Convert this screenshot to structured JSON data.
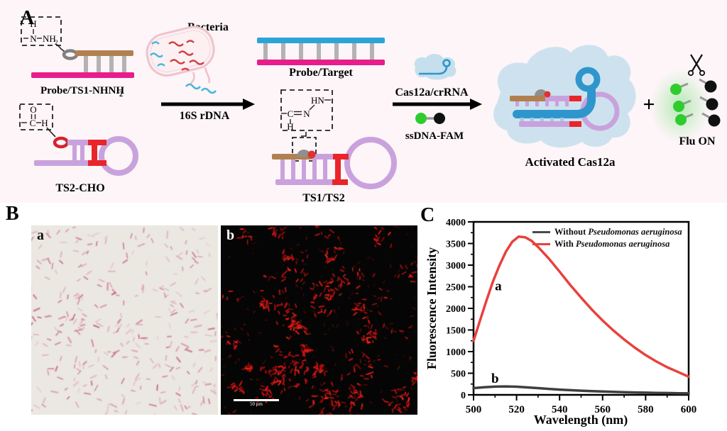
{
  "panel_a": {
    "label": "A",
    "probe_ts1": {
      "main": "Probe/TS1-NHNH",
      "sub": "2"
    },
    "bacteria_label": "Bacteria",
    "arrow1_label": "16S rDNA",
    "ts2_cho_label": "TS2-CHO",
    "probe_target_label": "Probe/Target",
    "ts1_ts2_label": "TS1/TS2",
    "cas12a_label": "Cas12a/crRNA",
    "ssdna_label": "ssDNA-FAM",
    "activated_label": "Activated Cas12a",
    "plus": "+",
    "flu_on_label": "Flu ON",
    "chem_hydrazide": {
      "h": "H",
      "n": "N",
      "nh": "NH",
      "sub": "2"
    },
    "chem_aldehyde": {
      "o": "O",
      "c": "C",
      "h": "H"
    },
    "chem_hydrazone": {
      "hn": "HN",
      "c": "C",
      "n": "N",
      "h": "H"
    }
  },
  "panel_b": {
    "label": "B",
    "image_a_label": "a",
    "image_b_label": "b",
    "scale_bar_text": "50 μm"
  },
  "panel_c": {
    "label": "C",
    "legend": [
      {
        "prefix": "Without ",
        "species": "Pseudomonas aeruginosa",
        "color": "#4a4a4a"
      },
      {
        "prefix": "With ",
        "species": "Pseudomonas aeruginosa",
        "color": "#e8413c"
      }
    ]
  },
  "chart_data": {
    "type": "line",
    "title": "",
    "xlabel": "Wavelength (nm)",
    "ylabel": "Fluorescence Intensity",
    "xlim": [
      500,
      600
    ],
    "ylim": [
      0,
      4000
    ],
    "xticks": [
      500,
      520,
      540,
      560,
      580,
      600
    ],
    "yticks": [
      0,
      500,
      1000,
      1500,
      2000,
      2500,
      3000,
      3500,
      4000
    ],
    "x_minor_step": 10,
    "y_minor_step": 250,
    "grid": false,
    "legend_position": "top-right-inside",
    "series": [
      {
        "name": "With Pseudomonas aeruginosa",
        "curve_label": "a",
        "label_x": 511.5,
        "label_y": 2420,
        "color": "#e8413c",
        "x": [
          500,
          503,
          506,
          509,
          512,
          515,
          518,
          521,
          524,
          527,
          530,
          535,
          540,
          545,
          550,
          555,
          560,
          565,
          570,
          575,
          580,
          585,
          590,
          595,
          600
        ],
        "y": [
          1250,
          1720,
          2180,
          2620,
          2990,
          3310,
          3540,
          3660,
          3645,
          3560,
          3420,
          3150,
          2850,
          2540,
          2250,
          1970,
          1720,
          1490,
          1280,
          1090,
          920,
          770,
          640,
          530,
          420
        ]
      },
      {
        "name": "Without Pseudomonas aeruginosa",
        "curve_label": "b",
        "label_x": 510,
        "label_y": 280,
        "color": "#3f3f3f",
        "x": [
          500,
          505,
          510,
          515,
          520,
          525,
          530,
          535,
          540,
          545,
          550,
          555,
          560,
          565,
          570,
          575,
          580,
          585,
          590,
          595,
          600
        ],
        "y": [
          155,
          175,
          190,
          195,
          188,
          172,
          155,
          138,
          122,
          108,
          96,
          86,
          77,
          69,
          62,
          56,
          50,
          46,
          42,
          38,
          35
        ]
      }
    ]
  },
  "colors": {
    "panel_a_bg": "#fdf5f8",
    "magenta_strand": "#e91c8b",
    "blue_strand": "#2ca4d8",
    "brown_strand": "#b08050",
    "purple_strand": "#c9a2dd",
    "red_segment": "#e8252b",
    "cas_blob": "#cde2ee",
    "fam_green": "#2ecc2e",
    "quencher_black": "#111111",
    "micro_a_bg": "#ebe7e1",
    "micro_a_bacteria": "#cf7d9b",
    "micro_b_bg": "#050505",
    "micro_b_bacteria": "#e01010"
  }
}
